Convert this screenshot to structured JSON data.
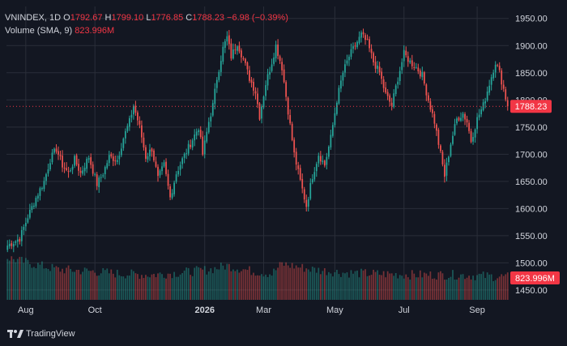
{
  "header": {
    "symbol": "VNINDEX, 1D",
    "open_label": "O",
    "open": "1792.67",
    "high_label": "H",
    "high": "1799.10",
    "low_label": "L",
    "low": "1776.85",
    "close_label": "C",
    "close": "1788.23",
    "change": "−6.98 (−0.39%)",
    "volume_label": "Volume (SMA, 9)",
    "volume_value": "823.996M"
  },
  "price_tag": "1788.23",
  "volume_tag": "823.996M",
  "brand": "TradingView",
  "colors": {
    "up": "#26a69a",
    "down": "#ef5350",
    "background": "#131722",
    "grid": "#2a2e39",
    "text": "#d1d4dc",
    "tag": "#f23645"
  },
  "chart_data": {
    "type": "candlestick",
    "title": "",
    "x_ticks": [
      "Aug",
      "Oct",
      "2026",
      "Mar",
      "May",
      "Jul",
      "Sep"
    ],
    "y_ticks": [
      1450,
      1500,
      1550,
      1600,
      1650,
      1700,
      1750,
      1800,
      1850,
      1900,
      1950
    ],
    "ylim": [
      1432,
      1972
    ],
    "last_close": 1788.23,
    "path": [
      [
        0,
        1532
      ],
      [
        6,
        1545
      ],
      [
        10,
        1585
      ],
      [
        14,
        1620
      ],
      [
        18,
        1650
      ],
      [
        21,
        1690
      ],
      [
        24,
        1710
      ],
      [
        27,
        1680
      ],
      [
        30,
        1665
      ],
      [
        33,
        1690
      ],
      [
        36,
        1665
      ],
      [
        40,
        1695
      ],
      [
        44,
        1645
      ],
      [
        47,
        1665
      ],
      [
        50,
        1695
      ],
      [
        54,
        1690
      ],
      [
        57,
        1730
      ],
      [
        60,
        1760
      ],
      [
        62,
        1790
      ],
      [
        65,
        1750
      ],
      [
        68,
        1695
      ],
      [
        71,
        1710
      ],
      [
        74,
        1655
      ],
      [
        77,
        1680
      ],
      [
        80,
        1620
      ],
      [
        83,
        1665
      ],
      [
        86,
        1690
      ],
      [
        90,
        1720
      ],
      [
        94,
        1750
      ],
      [
        96,
        1700
      ],
      [
        99,
        1760
      ],
      [
        101,
        1790
      ],
      [
        103,
        1840
      ],
      [
        106,
        1895
      ],
      [
        108,
        1915
      ],
      [
        110,
        1880
      ],
      [
        113,
        1905
      ],
      [
        116,
        1875
      ],
      [
        119,
        1840
      ],
      [
        122,
        1815
      ],
      [
        124,
        1770
      ],
      [
        127,
        1830
      ],
      [
        130,
        1870
      ],
      [
        132,
        1900
      ],
      [
        135,
        1860
      ],
      [
        138,
        1780
      ],
      [
        141,
        1700
      ],
      [
        144,
        1650
      ],
      [
        147,
        1605
      ],
      [
        150,
        1660
      ],
      [
        153,
        1700
      ],
      [
        156,
        1680
      ],
      [
        159,
        1730
      ],
      [
        162,
        1800
      ],
      [
        165,
        1850
      ],
      [
        168,
        1880
      ],
      [
        171,
        1900
      ],
      [
        174,
        1920
      ],
      [
        177,
        1905
      ],
      [
        180,
        1870
      ],
      [
        183,
        1850
      ],
      [
        186,
        1810
      ],
      [
        189,
        1790
      ],
      [
        192,
        1840
      ],
      [
        195,
        1885
      ],
      [
        198,
        1870
      ],
      [
        201,
        1860
      ],
      [
        204,
        1845
      ],
      [
        207,
        1800
      ],
      [
        210,
        1760
      ],
      [
        213,
        1700
      ],
      [
        215,
        1660
      ],
      [
        218,
        1720
      ],
      [
        221,
        1765
      ],
      [
        224,
        1775
      ],
      [
        226,
        1760
      ],
      [
        228,
        1725
      ],
      [
        231,
        1765
      ],
      [
        234,
        1790
      ],
      [
        237,
        1830
      ],
      [
        240,
        1870
      ],
      [
        242,
        1850
      ],
      [
        244,
        1820
      ],
      [
        246,
        1788
      ]
    ],
    "volume_path": [
      [
        0,
        1510
      ],
      [
        10,
        1500
      ],
      [
        25,
        1488
      ],
      [
        40,
        1485
      ],
      [
        55,
        1480
      ],
      [
        70,
        1478
      ],
      [
        85,
        1482
      ],
      [
        100,
        1488
      ],
      [
        108,
        1495
      ],
      [
        120,
        1485
      ],
      [
        130,
        1480
      ],
      [
        135,
        1498
      ],
      [
        150,
        1488
      ],
      [
        165,
        1482
      ],
      [
        180,
        1480
      ],
      [
        200,
        1478
      ],
      [
        220,
        1478
      ],
      [
        240,
        1475
      ],
      [
        246,
        1474
      ]
    ],
    "volume_ylim": [
      1440,
      1520
    ],
    "grid": true,
    "legend": "top-left"
  }
}
